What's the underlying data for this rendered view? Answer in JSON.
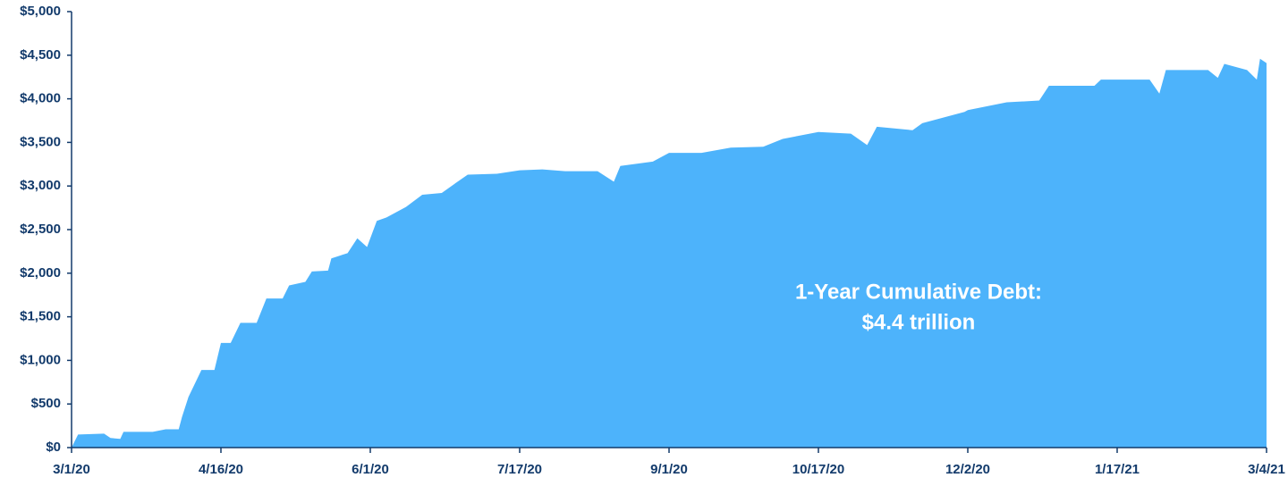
{
  "chart_data": {
    "type": "area",
    "color": "#4db3fb",
    "annotations": [
      "1-Year Cumulative Debt:",
      "$4.4 trillion"
    ],
    "x": [
      "2020-03-01",
      "2020-03-03",
      "2020-03-11",
      "2020-03-13",
      "2020-03-16",
      "2020-03-17",
      "2020-03-26",
      "2020-03-30",
      "2020-04-03",
      "2020-04-04",
      "2020-04-06",
      "2020-04-10",
      "2020-04-14",
      "2020-04-16",
      "2020-04-19",
      "2020-04-22",
      "2020-04-27",
      "2020-04-30",
      "2020-05-05",
      "2020-05-07",
      "2020-05-12",
      "2020-05-14",
      "2020-05-19",
      "2020-05-20",
      "2020-05-25",
      "2020-05-28",
      "2020-05-31",
      "2020-06-03",
      "2020-06-06",
      "2020-06-12",
      "2020-06-17",
      "2020-06-23",
      "2020-06-26",
      "2020-07-01",
      "2020-07-10",
      "2020-07-17",
      "2020-07-24",
      "2020-07-31",
      "2020-08-10",
      "2020-08-15",
      "2020-08-17",
      "2020-08-27",
      "2020-09-01",
      "2020-09-11",
      "2020-09-20",
      "2020-09-30",
      "2020-10-06",
      "2020-10-17",
      "2020-10-27",
      "2020-11-01",
      "2020-11-04",
      "2020-11-15",
      "2020-11-18",
      "2020-12-01",
      "2020-12-02",
      "2020-12-14",
      "2020-12-24",
      "2020-12-27",
      "2021-01-10",
      "2021-01-12",
      "2021-01-27",
      "2021-01-30",
      "2021-02-01",
      "2021-02-14",
      "2021-02-17",
      "2021-02-19",
      "2021-02-26",
      "2021-03-01",
      "2021-03-02",
      "2021-03-04"
    ],
    "values": [
      0,
      150,
      160,
      110,
      100,
      180,
      180,
      210,
      210,
      350,
      580,
      890,
      890,
      1200,
      1200,
      1430,
      1430,
      1710,
      1710,
      1860,
      1900,
      2020,
      2030,
      2170,
      2230,
      2400,
      2300,
      2600,
      2640,
      2760,
      2900,
      2920,
      3000,
      3130,
      3140,
      3180,
      3190,
      3170,
      3170,
      3050,
      3230,
      3280,
      3380,
      3380,
      3440,
      3450,
      3540,
      3620,
      3600,
      3470,
      3680,
      3640,
      3720,
      3850,
      3870,
      3960,
      3980,
      4150,
      4150,
      4220,
      4220,
      4060,
      4330,
      4330,
      4240,
      4400,
      4330,
      4220,
      4460,
      4410
    ],
    "xlim": [
      "2020-03-01",
      "2021-03-04"
    ],
    "xticks": [
      {
        "value": "2020-03-01",
        "label": "3/1/20"
      },
      {
        "value": "2020-04-16",
        "label": "4/16/20"
      },
      {
        "value": "2020-06-01",
        "label": "6/1/20"
      },
      {
        "value": "2020-07-17",
        "label": "7/17/20"
      },
      {
        "value": "2020-09-01",
        "label": "9/1/20"
      },
      {
        "value": "2020-10-17",
        "label": "10/17/20"
      },
      {
        "value": "2020-12-02",
        "label": "12/2/20"
      },
      {
        "value": "2021-01-17",
        "label": "1/17/21"
      },
      {
        "value": "2021-03-04",
        "label": "3/4/21"
      }
    ],
    "ylim": [
      0,
      5000
    ],
    "yticks": [
      {
        "value": 0,
        "label": "$0"
      },
      {
        "value": 500,
        "label": "$500"
      },
      {
        "value": 1000,
        "label": "$1,000"
      },
      {
        "value": 1500,
        "label": "$1,500"
      },
      {
        "value": 2000,
        "label": "$2,000"
      },
      {
        "value": 2500,
        "label": "$2,500"
      },
      {
        "value": 3000,
        "label": "$3,000"
      },
      {
        "value": 3500,
        "label": "$3,500"
      },
      {
        "value": 4000,
        "label": "$4,000"
      },
      {
        "value": 4500,
        "label": "$4,500"
      },
      {
        "value": 5000,
        "label": "$5,000"
      }
    ]
  }
}
